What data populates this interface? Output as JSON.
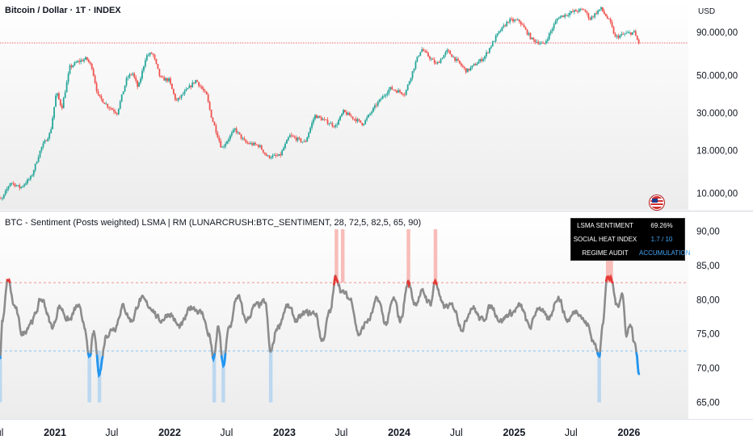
{
  "price_pane": {
    "title": "Bitcoin / Dollar · 1T · INDEX",
    "currency_label": "USD"
  },
  "indicator_pane": {
    "title": "BTC - Sentiment (Posts weighted) LSMA | RM (LUNARCRUSH:BTC_SENTIMENT, 28, 72,5, 82,5, 65, 90)"
  },
  "sentiment_table": {
    "rows": [
      {
        "key": "LSMA SENTIMENT",
        "value": "69.26%",
        "value_color": "#ffffff"
      },
      {
        "key": "SOCIAL HEAT INDEX",
        "value": "1.7 / 10",
        "value_color": "#42a5f5"
      },
      {
        "key": "REGIME AUDIT",
        "value": "ACCUMULATION",
        "value_color": "#42a5f5"
      }
    ]
  },
  "colors": {
    "up_candle": "#26a69a",
    "down_candle": "#ef5350",
    "level_line": "#f23645",
    "sentiment_line": "#8c8c8c",
    "overheat": "#e53935",
    "oversold": "#2196f3",
    "overheat_band": "#f7b2ad",
    "oversold_band": "#b3d4f0"
  },
  "chart_data": [
    {
      "type": "candlestick",
      "title": "Bitcoin / Dollar · 1T · INDEX",
      "y_scale": "log",
      "ylim": [
        8000,
        140000
      ],
      "y_ticks": [
        10000,
        18000,
        30000,
        50000,
        90000
      ],
      "y_tick_labels": [
        "10.000,00",
        "18.000,00",
        "30.000,00",
        "50.000,00",
        "90.000,00"
      ],
      "price_level": 78000,
      "x_range": [
        "2020-06",
        "2026-02"
      ],
      "path": [
        [
          "2020-06-15",
          9000
        ],
        [
          "2020-07-20",
          9300
        ],
        [
          "2020-08-15",
          11700
        ],
        [
          "2020-09-15",
          10800
        ],
        [
          "2020-10-20",
          12500
        ],
        [
          "2020-11-20",
          18500
        ],
        [
          "2020-12-20",
          23000
        ],
        [
          "2021-01-08",
          40000
        ],
        [
          "2021-01-25",
          32000
        ],
        [
          "2021-02-20",
          56000
        ],
        [
          "2021-03-15",
          60000
        ],
        [
          "2021-04-14",
          63000
        ],
        [
          "2021-05-01",
          56000
        ],
        [
          "2021-05-20",
          38000
        ],
        [
          "2021-06-20",
          33000
        ],
        [
          "2021-07-20",
          30000
        ],
        [
          "2021-08-20",
          48000
        ],
        [
          "2021-09-07",
          52000
        ],
        [
          "2021-09-25",
          42000
        ],
        [
          "2021-10-20",
          65000
        ],
        [
          "2021-11-10",
          68000
        ],
        [
          "2021-12-05",
          48000
        ],
        [
          "2022-01-01",
          47000
        ],
        [
          "2022-01-24",
          35000
        ],
        [
          "2022-03-28",
          47000
        ],
        [
          "2022-05-01",
          38000
        ],
        [
          "2022-05-15",
          29000
        ],
        [
          "2022-06-18",
          18500
        ],
        [
          "2022-07-30",
          24000
        ],
        [
          "2022-09-01",
          20000
        ],
        [
          "2022-10-15",
          19200
        ],
        [
          "2022-11-10",
          16500
        ],
        [
          "2022-12-20",
          16700
        ],
        [
          "2023-01-20",
          22000
        ],
        [
          "2023-03-10",
          20000
        ],
        [
          "2023-04-10",
          29000
        ],
        [
          "2023-06-15",
          25000
        ],
        [
          "2023-07-10",
          30500
        ],
        [
          "2023-09-10",
          25800
        ],
        [
          "2023-10-25",
          34000
        ],
        [
          "2023-12-05",
          42000
        ],
        [
          "2024-01-22",
          39000
        ],
        [
          "2024-02-28",
          62000
        ],
        [
          "2024-03-14",
          72000
        ],
        [
          "2024-05-01",
          58000
        ],
        [
          "2024-06-05",
          70000
        ],
        [
          "2024-08-05",
          53000
        ],
        [
          "2024-09-30",
          64000
        ],
        [
          "2024-11-12",
          88000
        ],
        [
          "2024-12-17",
          106000
        ],
        [
          "2025-01-20",
          105000
        ],
        [
          "2025-02-28",
          82000
        ],
        [
          "2025-04-08",
          76000
        ],
        [
          "2025-05-22",
          110000
        ],
        [
          "2025-07-14",
          120000
        ],
        [
          "2025-08-14",
          123000
        ],
        [
          "2025-09-01",
          108000
        ],
        [
          "2025-10-06",
          125000
        ],
        [
          "2025-11-05",
          103000
        ],
        [
          "2025-11-21",
          84000
        ],
        [
          "2025-12-20",
          88000
        ],
        [
          "2026-01-20",
          90000
        ],
        [
          "2026-02-03",
          78000
        ]
      ]
    },
    {
      "type": "line",
      "title": "BTC - Sentiment (Posts weighted) LSMA | RM (LUNARCRUSH:BTC_SENTIMENT, 28, 72,5, 82,5, 65, 90)",
      "ylim": [
        64,
        91
      ],
      "y_ticks": [
        65,
        70,
        75,
        80,
        85,
        90
      ],
      "y_tick_labels": [
        "65,00",
        "70,00",
        "75,00",
        "80,00",
        "85,00",
        "90,00"
      ],
      "thresholds": {
        "upper": 82.5,
        "lower": 72.5
      },
      "series_anchors": [
        [
          "2020-06-15",
          78
        ],
        [
          "2020-06-28",
          80
        ],
        [
          "2020-07-05",
          74
        ],
        [
          "2020-07-10",
          71.5
        ],
        [
          "2020-07-18",
          77
        ],
        [
          "2020-08-05",
          82.8
        ],
        [
          "2020-08-25",
          79
        ],
        [
          "2020-09-20",
          75
        ],
        [
          "2020-10-20",
          77
        ],
        [
          "2020-11-20",
          80
        ],
        [
          "2020-12-25",
          76
        ],
        [
          "2021-01-15",
          79
        ],
        [
          "2021-02-15",
          77
        ],
        [
          "2021-03-15",
          79
        ],
        [
          "2021-04-01",
          77
        ],
        [
          "2021-04-20",
          71.5
        ],
        [
          "2021-05-05",
          75
        ],
        [
          "2021-05-22",
          69.5
        ],
        [
          "2021-06-15",
          75
        ],
        [
          "2021-07-10",
          76
        ],
        [
          "2021-08-05",
          79
        ],
        [
          "2021-09-01",
          77
        ],
        [
          "2021-10-01",
          80
        ],
        [
          "2021-11-01",
          79
        ],
        [
          "2021-12-01",
          77
        ],
        [
          "2022-01-01",
          78
        ],
        [
          "2022-02-01",
          76
        ],
        [
          "2022-03-15",
          79
        ],
        [
          "2022-04-15",
          78
        ],
        [
          "2022-05-05",
          75
        ],
        [
          "2022-05-22",
          71.3
        ],
        [
          "2022-06-05",
          76
        ],
        [
          "2022-06-20",
          70.3
        ],
        [
          "2022-07-10",
          76
        ],
        [
          "2022-08-05",
          80.5
        ],
        [
          "2022-09-01",
          77
        ],
        [
          "2022-10-01",
          79
        ],
        [
          "2022-11-01",
          79.5
        ],
        [
          "2022-11-18",
          72.3
        ],
        [
          "2022-12-10",
          76
        ],
        [
          "2023-01-10",
          79
        ],
        [
          "2023-02-10",
          77
        ],
        [
          "2023-03-10",
          78
        ],
        [
          "2023-04-10",
          78
        ],
        [
          "2023-05-01",
          74
        ],
        [
          "2023-05-25",
          78
        ],
        [
          "2023-06-15",
          83.3
        ],
        [
          "2023-07-05",
          81
        ],
        [
          "2023-08-01",
          80
        ],
        [
          "2023-08-25",
          75
        ],
        [
          "2023-09-25",
          77
        ],
        [
          "2023-10-25",
          80
        ],
        [
          "2023-11-20",
          76.5
        ],
        [
          "2023-12-15",
          80
        ],
        [
          "2024-01-05",
          77
        ],
        [
          "2024-01-30",
          82.5
        ],
        [
          "2024-02-20",
          79.5
        ],
        [
          "2024-03-15",
          81
        ],
        [
          "2024-04-10",
          79.5
        ],
        [
          "2024-04-25",
          82.7
        ],
        [
          "2024-05-20",
          79
        ],
        [
          "2024-06-20",
          79
        ],
        [
          "2024-07-20",
          76
        ],
        [
          "2024-08-20",
          79
        ],
        [
          "2024-09-20",
          77
        ],
        [
          "2024-10-20",
          79
        ],
        [
          "2024-11-20",
          77
        ],
        [
          "2024-12-20",
          78
        ],
        [
          "2025-01-20",
          79
        ],
        [
          "2025-02-20",
          76
        ],
        [
          "2025-03-20",
          79
        ],
        [
          "2025-04-20",
          77
        ],
        [
          "2025-05-20",
          80.5
        ],
        [
          "2025-06-20",
          77
        ],
        [
          "2025-07-20",
          78.5
        ],
        [
          "2025-08-20",
          76.5
        ],
        [
          "2025-09-10",
          74
        ],
        [
          "2025-09-28",
          71.7
        ],
        [
          "2025-10-10",
          77
        ],
        [
          "2025-10-25",
          83.5
        ],
        [
          "2025-11-05",
          82.8
        ],
        [
          "2025-11-25",
          79
        ],
        [
          "2025-12-10",
          81
        ],
        [
          "2025-12-25",
          75
        ],
        [
          "2026-01-05",
          76.5
        ],
        [
          "2026-01-20",
          73.5
        ],
        [
          "2026-02-03",
          69.3
        ]
      ],
      "overheat_bands": [
        "2023-06-15",
        "2023-07-05",
        "2024-01-30",
        "2024-04-25",
        "2025-10-25",
        "2025-11-05"
      ],
      "oversold_bands": [
        "2020-07-10",
        "2021-04-20",
        "2021-05-22",
        "2022-05-22",
        "2022-06-20",
        "2022-11-18",
        "2025-09-28"
      ]
    }
  ],
  "x_axis": {
    "ticks": [
      {
        "date": "2020-07-01",
        "label": "Jul",
        "bold": false
      },
      {
        "date": "2021-01-01",
        "label": "2021",
        "bold": true
      },
      {
        "date": "2021-07-01",
        "label": "Jul",
        "bold": false
      },
      {
        "date": "2022-01-01",
        "label": "2022",
        "bold": true
      },
      {
        "date": "2022-07-01",
        "label": "Jul",
        "bold": false
      },
      {
        "date": "2023-01-01",
        "label": "2023",
        "bold": true
      },
      {
        "date": "2023-07-01",
        "label": "Jul",
        "bold": false
      },
      {
        "date": "2024-01-01",
        "label": "2024",
        "bold": true
      },
      {
        "date": "2024-07-01",
        "label": "Jul",
        "bold": false
      },
      {
        "date": "2025-01-01",
        "label": "2025",
        "bold": true
      },
      {
        "date": "2025-07-01",
        "label": "Jul",
        "bold": false
      },
      {
        "date": "2026-01-01",
        "label": "2026",
        "bold": true
      }
    ]
  }
}
